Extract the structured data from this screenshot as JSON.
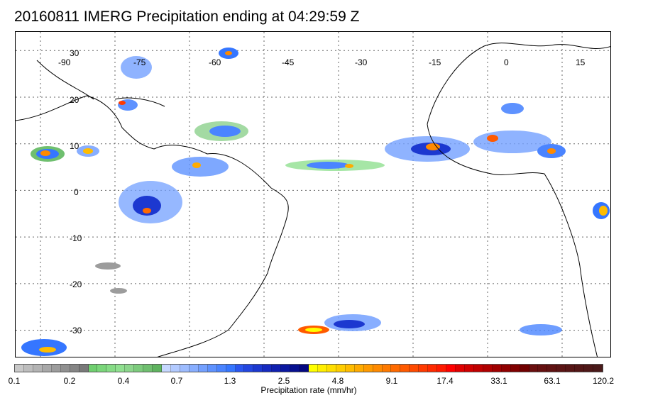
{
  "title": "20160811 IMERG Precipitation ending at 04:29:59 Z",
  "map": {
    "lon_labels": [
      "-90",
      "-75",
      "-60",
      "-45",
      "-30",
      "-15",
      "0",
      "15"
    ],
    "lat_labels": [
      "30",
      "20",
      "10",
      "0",
      "-10",
      "-20",
      "-30"
    ],
    "lon_range": [
      -95,
      25
    ],
    "lat_range": [
      -36,
      34
    ],
    "grid": true
  },
  "colorbar": {
    "tick_labels": [
      "0.1",
      "0.2",
      "0.4",
      "0.7",
      "1.3",
      "2.5",
      "4.8",
      "9.1",
      "17.4",
      "33.1",
      "63.1",
      "120.2"
    ],
    "label": "Precipitation rate (mm/hr)",
    "colors": [
      "#c8c8c8",
      "#bdbdbd",
      "#b3b3b3",
      "#a8a8a8",
      "#9c9c9c",
      "#909090",
      "#858585",
      "#797979",
      "#6fcf6f",
      "#7ad67a",
      "#86dc86",
      "#90e090",
      "#8cd68c",
      "#7ccb7c",
      "#6fbf6f",
      "#5fb35f",
      "#c6d8ff",
      "#b2caff",
      "#9dbcff",
      "#88aeff",
      "#73a0ff",
      "#5e92ff",
      "#4a84ff",
      "#3576ff",
      "#2a56f0",
      "#2346e0",
      "#1c38d0",
      "#162ac0",
      "#1020b0",
      "#0b18a0",
      "#071090",
      "#040880",
      "#ffff00",
      "#ffee00",
      "#ffde00",
      "#ffcd00",
      "#ffbc00",
      "#ffab00",
      "#ff9a00",
      "#ff8a00",
      "#ff7a00",
      "#ff6a00",
      "#ff5a00",
      "#ff4a00",
      "#ff3a00",
      "#ff2a00",
      "#ff1a00",
      "#ff0000",
      "#e00000",
      "#d00000",
      "#c00000",
      "#b00000",
      "#a00000",
      "#900000",
      "#800000",
      "#700000",
      "#6a0f0f",
      "#651010",
      "#601212",
      "#5b1414",
      "#561515",
      "#521616",
      "#4e1818",
      "#4a1a1a"
    ]
  }
}
